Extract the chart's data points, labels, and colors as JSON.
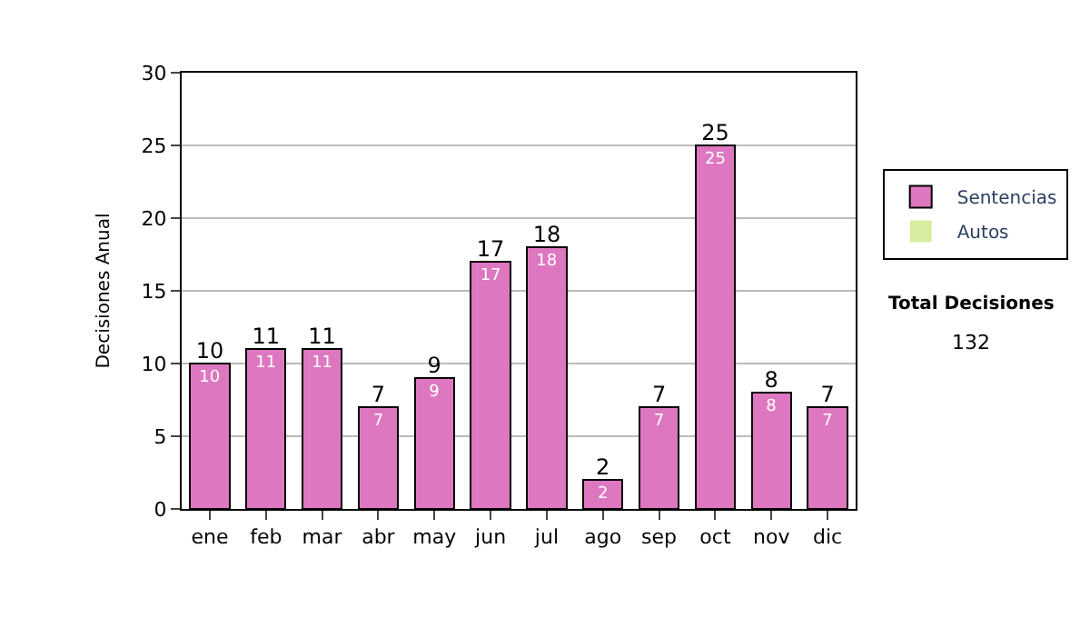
{
  "chart_data": {
    "type": "bar",
    "stacked": true,
    "ylabel": "Decisiones Anual",
    "categories": [
      "ene",
      "feb",
      "mar",
      "abr",
      "may",
      "jun",
      "jul",
      "ago",
      "sep",
      "oct",
      "nov",
      "dic"
    ],
    "series": [
      {
        "name": "Sentencias",
        "color": "#dd77c0",
        "values": [
          10,
          11,
          11,
          7,
          9,
          17,
          18,
          2,
          7,
          25,
          8,
          7
        ],
        "value_labels": [
          "10",
          "11",
          "11",
          "7",
          "9",
          "17",
          "18",
          "2",
          "7",
          "25",
          "8",
          "7"
        ]
      },
      {
        "name": "Autos",
        "color": "#d8eca0",
        "values": [
          0,
          0,
          0,
          0,
          0,
          0,
          0,
          0,
          0,
          0,
          0,
          0
        ]
      }
    ],
    "totals": [
      "10",
      "11",
      "11",
      "7",
      "9",
      "17",
      "18",
      "2",
      "7",
      "25",
      "8",
      "7"
    ],
    "ylim": [
      0,
      30
    ],
    "yticks": [
      0,
      5,
      10,
      15,
      20,
      25,
      30
    ],
    "grid": "y",
    "legend": "right",
    "annotations": [
      "Total Decisiones",
      "132"
    ]
  }
}
